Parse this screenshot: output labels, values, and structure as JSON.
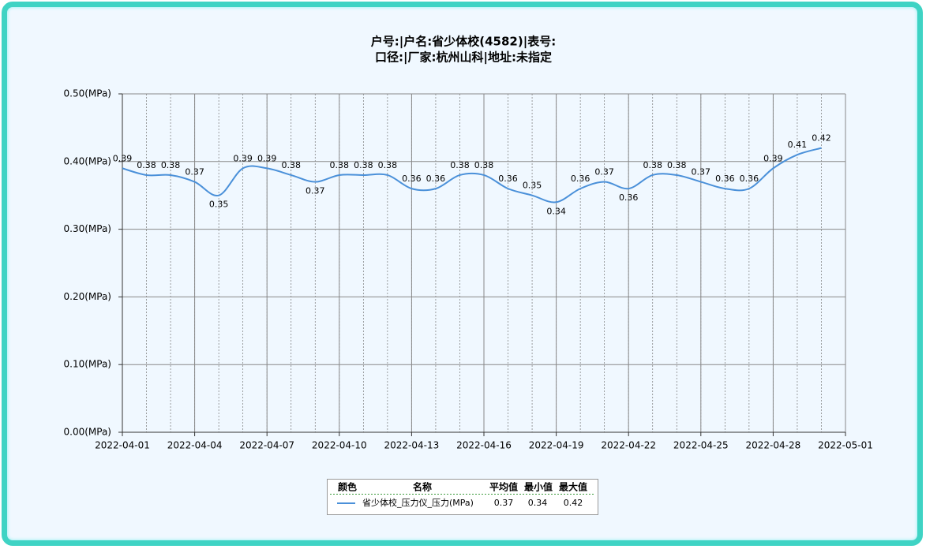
{
  "chart_data": {
    "type": "line",
    "title": "户号:|户名:省少体校(4582)|表号:",
    "subtitle": "口径:|厂家:杭州山科|地址:未指定",
    "x": [
      "2022-04-01",
      "2022-04-02",
      "2022-04-03",
      "2022-04-04",
      "2022-04-05",
      "2022-04-06",
      "2022-04-07",
      "2022-04-08",
      "2022-04-09",
      "2022-04-10",
      "2022-04-11",
      "2022-04-12",
      "2022-04-13",
      "2022-04-14",
      "2022-04-15",
      "2022-04-16",
      "2022-04-17",
      "2022-04-18",
      "2022-04-19",
      "2022-04-20",
      "2022-04-21",
      "2022-04-22",
      "2022-04-23",
      "2022-04-24",
      "2022-04-25",
      "2022-04-26",
      "2022-04-27",
      "2022-04-28",
      "2022-04-29",
      "2022-04-30"
    ],
    "series": [
      {
        "name": "省少体校_压力仪_压力(MPa)",
        "color": "#4a90d9",
        "values": [
          0.39,
          0.38,
          0.38,
          0.37,
          0.35,
          0.39,
          0.39,
          0.38,
          0.37,
          0.38,
          0.38,
          0.38,
          0.36,
          0.36,
          0.38,
          0.38,
          0.36,
          0.35,
          0.34,
          0.36,
          0.37,
          0.36,
          0.38,
          0.38,
          0.37,
          0.36,
          0.36,
          0.39,
          0.41,
          0.42
        ]
      }
    ],
    "xlim": [
      "2022-04-01",
      "2022-05-01"
    ],
    "xticks": [
      "2022-04-01",
      "2022-04-04",
      "2022-04-07",
      "2022-04-10",
      "2022-04-13",
      "2022-04-16",
      "2022-04-19",
      "2022-04-22",
      "2022-04-25",
      "2022-04-28",
      "2022-05-01"
    ],
    "ylim": [
      0,
      0.5
    ],
    "yticks": [
      {
        "value": 0,
        "label": "0.00(MPa)"
      },
      {
        "value": 0.1,
        "label": "0.10(MPa)"
      },
      {
        "value": 0.2,
        "label": "0.20(MPa)"
      },
      {
        "value": 0.3,
        "label": "0.30(MPa)"
      },
      {
        "value": 0.4,
        "label": "0.40(MPa)"
      },
      {
        "value": 0.5,
        "label": "0.50(MPa)"
      }
    ],
    "grid": true,
    "legend": {
      "headers": [
        "颜色",
        "名称",
        "平均值",
        "最小值",
        "最大值"
      ],
      "stats": [
        0.37,
        0.34,
        0.42
      ]
    }
  }
}
